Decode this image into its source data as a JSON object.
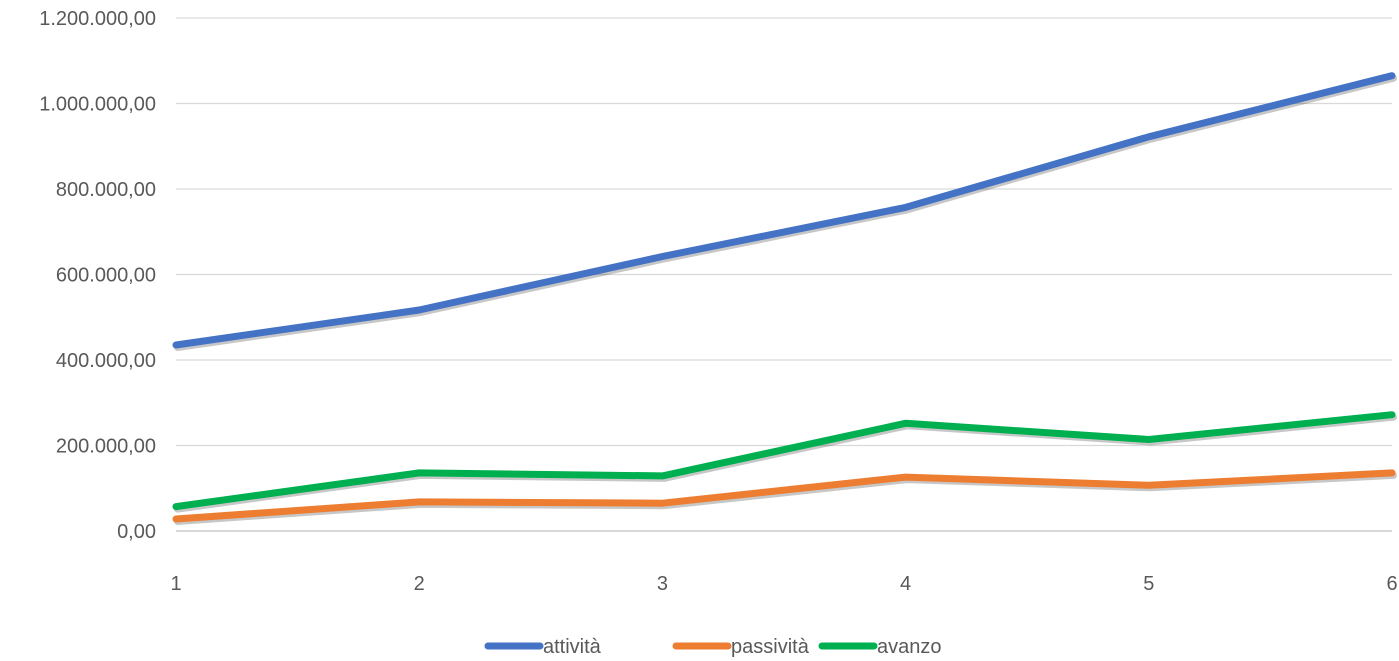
{
  "chart_data": {
    "type": "line",
    "x": [
      1,
      2,
      3,
      4,
      5,
      6
    ],
    "x_tick_labels": [
      "1",
      "2",
      "3",
      "4",
      "5",
      "6"
    ],
    "ylim": [
      0,
      1200000
    ],
    "y_tick_labels": [
      "0,00",
      "200.000,00",
      "400.000,00",
      "600.000,00",
      "800.000,00",
      "1.000.000,00",
      "1.200.000,00"
    ],
    "y_ticks": [
      0,
      200000,
      400000,
      600000,
      800000,
      1000000,
      1200000
    ],
    "grid": "horizontal",
    "legend_position": "bottom",
    "series": [
      {
        "name": "attività",
        "color": "#4472C4",
        "values": [
          435000,
          517000,
          642000,
          757000,
          922000,
          1065000
        ]
      },
      {
        "name": "passività",
        "color": "#ED7D31",
        "values": [
          28000,
          68000,
          65000,
          126000,
          107000,
          136000
        ]
      },
      {
        "name": "avanzo",
        "color": "#00B050",
        "values": [
          57000,
          136000,
          129000,
          252000,
          214000,
          272000
        ]
      }
    ]
  }
}
